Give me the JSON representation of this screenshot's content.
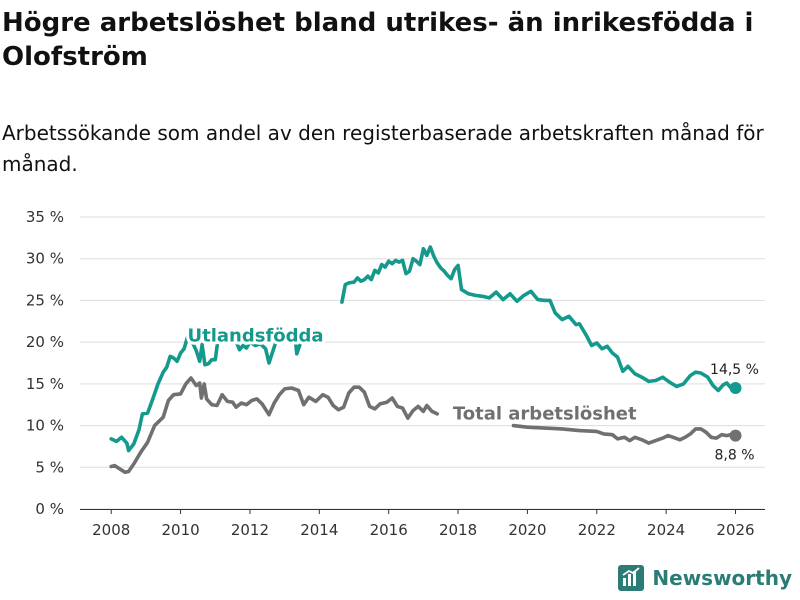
{
  "title": "Högre arbetslöshet bland utrikes- än inrikesfödda i Olofström",
  "subtitle": "Arbetssökande som andel av den registerbaserade arbetskraften månad för månad.",
  "brand": {
    "name": "Newsworthy",
    "icon": "newsworthy-logo-icon",
    "color": "#2a7c74"
  },
  "chart_data": {
    "type": "line",
    "title": "Högre arbetslöshet bland utrikes- än inrikesfödda i Olofström",
    "xlabel": "",
    "ylabel": "",
    "xlim": [
      2007.1,
      2026.85
    ],
    "ylim": [
      0,
      35
    ],
    "grid": true,
    "x_ticks": [
      2008,
      2010,
      2012,
      2014,
      2016,
      2018,
      2020,
      2022,
      2024,
      2026
    ],
    "y_ticks": [
      0,
      5,
      10,
      15,
      20,
      25,
      30,
      35
    ],
    "y_tick_labels": [
      "0 %",
      "5 %",
      "10 %",
      "15 %",
      "20 %",
      "25 %",
      "30 %",
      "35 %"
    ],
    "series": [
      {
        "name": "Utlandsfödda",
        "label": "Utlandsfödda",
        "color": "#139a8c",
        "end_label": "14,5 %",
        "label_x": 2010.2,
        "label_y": 20.1,
        "points": [
          [
            2008.0,
            8.4
          ],
          [
            2008.15,
            8.1
          ],
          [
            2008.3,
            8.6
          ],
          [
            2008.45,
            7.9
          ],
          [
            2008.5,
            7.0
          ],
          [
            2008.65,
            7.8
          ],
          [
            2008.8,
            9.5
          ],
          [
            2008.9,
            11.4
          ],
          [
            2009.05,
            11.5
          ],
          [
            2009.2,
            13.2
          ],
          [
            2009.35,
            15.0
          ],
          [
            2009.5,
            16.4
          ],
          [
            2009.6,
            17.0
          ],
          [
            2009.7,
            18.3
          ],
          [
            2009.8,
            18.1
          ],
          [
            2009.9,
            17.7
          ],
          [
            2010.0,
            18.7
          ],
          [
            2010.1,
            19.2
          ],
          [
            2010.2,
            20.6
          ],
          [
            2010.35,
            19.9
          ],
          [
            2010.45,
            19.0
          ],
          [
            2010.55,
            17.7
          ],
          [
            2010.62,
            19.7
          ],
          [
            2010.7,
            17.3
          ],
          [
            2010.8,
            17.4
          ],
          [
            2010.9,
            17.9
          ],
          [
            2011.0,
            17.9
          ],
          [
            2011.1,
            21.0
          ],
          [
            2011.2,
            21.3
          ],
          [
            2011.3,
            20.4
          ],
          [
            2011.4,
            20.5
          ],
          [
            2011.5,
            20.6
          ],
          [
            2011.6,
            20.1
          ],
          [
            2011.7,
            19.1
          ],
          [
            2011.8,
            19.6
          ],
          [
            2011.9,
            19.3
          ],
          [
            2012.0,
            20.0
          ],
          [
            2012.15,
            19.6
          ],
          [
            2012.3,
            19.8
          ],
          [
            2012.45,
            19.2
          ],
          [
            2012.55,
            17.5
          ],
          [
            2012.7,
            19.4
          ],
          [
            2012.8,
            20.6
          ],
          [
            2013.3,
            20.6
          ],
          [
            2013.35,
            18.6
          ],
          [
            2013.5,
            20.4
          ],
          [
            2013.65,
            20.8
          ]
        ],
        "points_b": [
          [
            2014.65,
            24.8
          ],
          [
            2014.75,
            26.9
          ],
          [
            2014.85,
            27.1
          ],
          [
            2015.0,
            27.2
          ],
          [
            2015.1,
            27.7
          ],
          [
            2015.2,
            27.3
          ],
          [
            2015.3,
            27.5
          ],
          [
            2015.4,
            27.9
          ],
          [
            2015.5,
            27.5
          ],
          [
            2015.6,
            28.6
          ],
          [
            2015.7,
            28.3
          ],
          [
            2015.8,
            29.3
          ],
          [
            2015.9,
            29.0
          ],
          [
            2016.0,
            29.7
          ],
          [
            2016.1,
            29.4
          ],
          [
            2016.2,
            29.8
          ],
          [
            2016.3,
            29.6
          ],
          [
            2016.4,
            29.8
          ],
          [
            2016.5,
            28.2
          ],
          [
            2016.6,
            28.5
          ],
          [
            2016.7,
            30.0
          ],
          [
            2016.8,
            29.7
          ],
          [
            2016.9,
            29.3
          ],
          [
            2017.0,
            31.2
          ],
          [
            2017.1,
            30.4
          ],
          [
            2017.2,
            31.4
          ],
          [
            2017.3,
            30.3
          ],
          [
            2017.4,
            29.5
          ],
          [
            2017.5,
            28.9
          ],
          [
            2017.6,
            28.5
          ],
          [
            2017.7,
            28.0
          ],
          [
            2017.8,
            27.6
          ],
          [
            2017.9,
            28.7
          ],
          [
            2018.0,
            29.2
          ],
          [
            2018.1,
            26.3
          ],
          [
            2018.3,
            25.8
          ],
          [
            2018.5,
            25.6
          ],
          [
            2018.7,
            25.5
          ],
          [
            2018.9,
            25.3
          ],
          [
            2019.1,
            26.0
          ],
          [
            2019.3,
            25.1
          ],
          [
            2019.5,
            25.8
          ],
          [
            2019.7,
            24.9
          ],
          [
            2019.9,
            25.6
          ],
          [
            2020.1,
            26.1
          ],
          [
            2020.3,
            25.1
          ],
          [
            2020.5,
            25.0
          ],
          [
            2020.65,
            25.0
          ],
          [
            2020.8,
            23.5
          ],
          [
            2021.0,
            22.7
          ],
          [
            2021.2,
            23.1
          ],
          [
            2021.4,
            22.1
          ],
          [
            2021.5,
            22.2
          ],
          [
            2021.7,
            20.8
          ],
          [
            2021.85,
            19.6
          ],
          [
            2022.0,
            19.9
          ],
          [
            2022.15,
            19.2
          ],
          [
            2022.3,
            19.5
          ],
          [
            2022.45,
            18.7
          ],
          [
            2022.6,
            18.2
          ],
          [
            2022.75,
            16.5
          ],
          [
            2022.9,
            17.1
          ],
          [
            2023.1,
            16.2
          ],
          [
            2023.3,
            15.8
          ],
          [
            2023.5,
            15.3
          ],
          [
            2023.7,
            15.4
          ],
          [
            2023.9,
            15.8
          ],
          [
            2024.1,
            15.2
          ],
          [
            2024.3,
            14.7
          ],
          [
            2024.5,
            15.0
          ],
          [
            2024.7,
            16.0
          ],
          [
            2024.85,
            16.4
          ],
          [
            2025.0,
            16.3
          ],
          [
            2025.2,
            15.8
          ],
          [
            2025.35,
            14.8
          ],
          [
            2025.5,
            14.2
          ],
          [
            2025.65,
            14.9
          ],
          [
            2025.75,
            15.1
          ],
          [
            2025.85,
            14.6
          ],
          [
            2026.0,
            14.5
          ]
        ]
      },
      {
        "name": "Total arbetslöshet",
        "label": "Total arbetslöshet",
        "color": "#707070",
        "end_label": "8,8 %",
        "label_x": 2017.85,
        "label_y": 10.7,
        "points": [
          [
            2008.0,
            5.1
          ],
          [
            2008.1,
            5.2
          ],
          [
            2008.25,
            4.8
          ],
          [
            2008.4,
            4.4
          ],
          [
            2008.5,
            4.5
          ],
          [
            2008.65,
            5.4
          ],
          [
            2008.85,
            6.8
          ],
          [
            2009.05,
            8.0
          ],
          [
            2009.25,
            10.0
          ],
          [
            2009.5,
            11.0
          ],
          [
            2009.65,
            13.0
          ],
          [
            2009.8,
            13.7
          ],
          [
            2010.0,
            13.8
          ],
          [
            2010.15,
            15.0
          ],
          [
            2010.3,
            15.7
          ],
          [
            2010.45,
            14.8
          ],
          [
            2010.55,
            15.1
          ],
          [
            2010.6,
            13.3
          ],
          [
            2010.68,
            15.0
          ],
          [
            2010.75,
            13.2
          ],
          [
            2010.9,
            12.5
          ],
          [
            2011.05,
            12.4
          ],
          [
            2011.2,
            13.7
          ],
          [
            2011.35,
            12.9
          ],
          [
            2011.5,
            12.8
          ],
          [
            2011.6,
            12.2
          ],
          [
            2011.75,
            12.7
          ],
          [
            2011.9,
            12.5
          ],
          [
            2012.05,
            13.0
          ],
          [
            2012.2,
            13.2
          ],
          [
            2012.35,
            12.6
          ],
          [
            2012.55,
            11.3
          ],
          [
            2012.7,
            12.7
          ],
          [
            2012.85,
            13.7
          ],
          [
            2013.0,
            14.4
          ],
          [
            2013.2,
            14.5
          ],
          [
            2013.4,
            14.2
          ],
          [
            2013.55,
            12.5
          ],
          [
            2013.7,
            13.4
          ],
          [
            2013.9,
            12.9
          ],
          [
            2014.1,
            13.7
          ],
          [
            2014.25,
            13.4
          ],
          [
            2014.4,
            12.4
          ],
          [
            2014.55,
            11.9
          ],
          [
            2014.7,
            12.2
          ],
          [
            2014.85,
            13.9
          ],
          [
            2015.0,
            14.6
          ],
          [
            2015.15,
            14.6
          ],
          [
            2015.3,
            14.0
          ],
          [
            2015.45,
            12.3
          ],
          [
            2015.6,
            12.0
          ],
          [
            2015.75,
            12.6
          ],
          [
            2015.95,
            12.8
          ],
          [
            2016.1,
            13.3
          ],
          [
            2016.25,
            12.3
          ],
          [
            2016.4,
            12.1
          ],
          [
            2016.55,
            10.9
          ],
          [
            2016.7,
            11.8
          ],
          [
            2016.85,
            12.3
          ],
          [
            2017.0,
            11.7
          ],
          [
            2017.1,
            12.4
          ],
          [
            2017.25,
            11.7
          ],
          [
            2017.4,
            11.4
          ]
        ],
        "points_b": [
          [
            2019.6,
            10.0
          ],
          [
            2020.0,
            9.8
          ],
          [
            2020.5,
            9.7
          ],
          [
            2021.0,
            9.6
          ],
          [
            2021.5,
            9.4
          ],
          [
            2022.0,
            9.3
          ],
          [
            2022.2,
            9.0
          ],
          [
            2022.45,
            8.9
          ],
          [
            2022.6,
            8.4
          ],
          [
            2022.8,
            8.6
          ],
          [
            2022.95,
            8.2
          ],
          [
            2023.1,
            8.6
          ],
          [
            2023.3,
            8.3
          ],
          [
            2023.5,
            7.9
          ],
          [
            2023.7,
            8.2
          ],
          [
            2023.9,
            8.5
          ],
          [
            2024.05,
            8.8
          ],
          [
            2024.2,
            8.6
          ],
          [
            2024.4,
            8.3
          ],
          [
            2024.55,
            8.6
          ],
          [
            2024.7,
            9.0
          ],
          [
            2024.85,
            9.6
          ],
          [
            2025.0,
            9.6
          ],
          [
            2025.15,
            9.2
          ],
          [
            2025.3,
            8.6
          ],
          [
            2025.45,
            8.5
          ],
          [
            2025.6,
            8.9
          ],
          [
            2025.75,
            8.8
          ],
          [
            2025.85,
            8.9
          ],
          [
            2026.0,
            8.8
          ]
        ]
      }
    ]
  }
}
